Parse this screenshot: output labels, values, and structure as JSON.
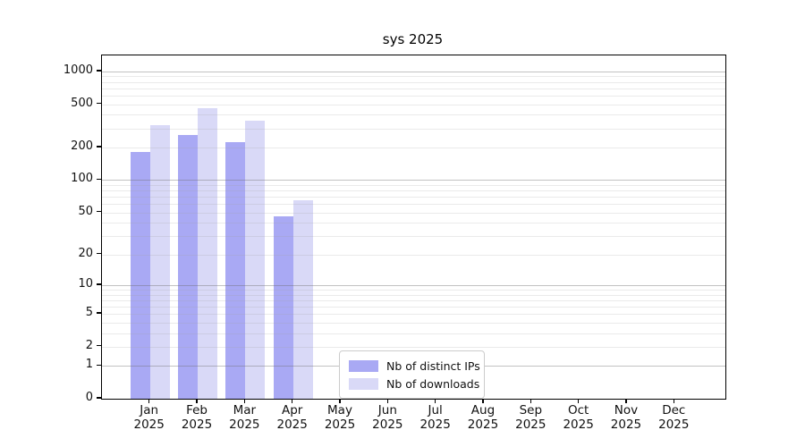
{
  "chart_data": {
    "type": "bar",
    "title": "sys 2025",
    "categories": [
      "Jan",
      "Feb",
      "Mar",
      "Apr",
      "May",
      "Jun",
      "Jul",
      "Aug",
      "Sep",
      "Oct",
      "Nov",
      "Dec"
    ],
    "x_tick_year": "2025",
    "series": [
      {
        "name": "Nb of distinct IPs",
        "color": "#a9a9f4",
        "values": [
          181,
          260,
          222,
          46,
          null,
          null,
          null,
          null,
          null,
          null,
          null,
          null
        ]
      },
      {
        "name": "Nb of downloads",
        "color": "#d9d9f7",
        "values": [
          320,
          460,
          355,
          65,
          null,
          null,
          null,
          null,
          null,
          null,
          null,
          null
        ]
      }
    ],
    "y_axis": {
      "scale": "log1p",
      "tick_labels": [
        0,
        1,
        2,
        5,
        10,
        20,
        50,
        100,
        200,
        500,
        1000
      ],
      "major_gridlines": [
        1,
        10,
        100,
        1000
      ],
      "top_value": 1400
    },
    "legend_position": "lower center",
    "grid": true
  }
}
